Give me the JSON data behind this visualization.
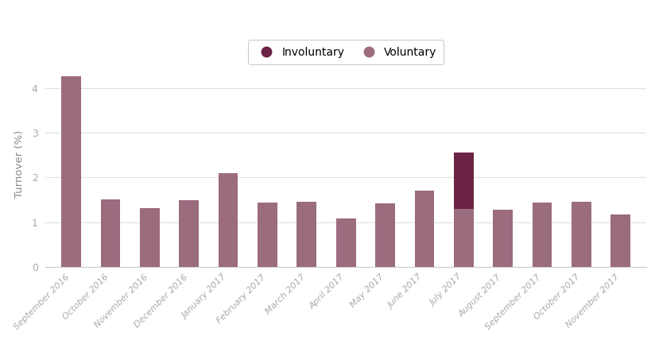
{
  "categories": [
    "September 2016",
    "October 2016",
    "November 2016",
    "December 2016",
    "January 2017",
    "February 2017",
    "March 2017",
    "April 2017",
    "May 2017",
    "June 2017",
    "July 2017",
    "August 2017",
    "September 2017",
    "October 2017",
    "November 2017"
  ],
  "voluntary": [
    4.27,
    1.51,
    1.32,
    1.49,
    2.09,
    1.44,
    1.45,
    1.08,
    1.41,
    1.71,
    1.29,
    1.27,
    1.44,
    1.46,
    1.17
  ],
  "involuntary": [
    0.0,
    0.0,
    0.0,
    0.0,
    0.0,
    0.0,
    0.0,
    0.0,
    0.0,
    0.0,
    1.27,
    0.0,
    0.0,
    0.0,
    0.0
  ],
  "voluntary_color": "#9b6b7e",
  "involuntary_color": "#6b2444",
  "ylabel": "Turnover (%)",
  "ylim": [
    0,
    4.6
  ],
  "yticks": [
    0,
    1,
    2,
    3,
    4
  ],
  "background_color": "#ffffff",
  "grid_color": "#e0e0e0",
  "legend_involuntary": "Involuntary",
  "legend_voluntary": "Voluntary"
}
